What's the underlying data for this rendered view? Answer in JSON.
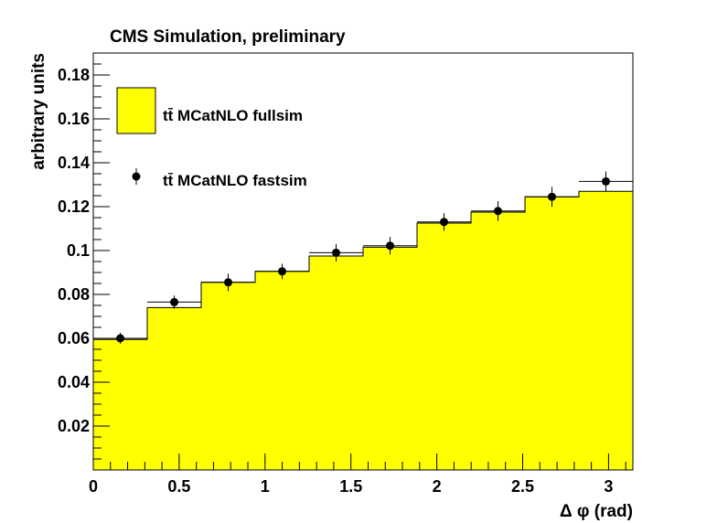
{
  "chart_data": {
    "type": "bar",
    "title": "CMS Simulation, preliminary",
    "xlabel": "Δ φ (rad)",
    "ylabel": "arbitrary units",
    "xlim": [
      0,
      3.1416
    ],
    "ylim": [
      0,
      0.19
    ],
    "x_ticks": [
      "0",
      "0.5",
      "1",
      "1.5",
      "2",
      "2.5",
      "3"
    ],
    "y_ticks": [
      "0.02",
      "0.04",
      "0.06",
      "0.08",
      "0.1",
      "0.12",
      "0.14",
      "0.16",
      "0.18"
    ],
    "bin_edges": [
      0,
      0.3142,
      0.6283,
      0.9425,
      1.2566,
      1.5708,
      1.885,
      2.1991,
      2.5133,
      2.8274,
      3.1416
    ],
    "series": [
      {
        "name": "tt̄ MCatNLO fullsim",
        "style": "filled-histogram",
        "color": "#ffff00",
        "values": [
          0.0595,
          0.074,
          0.0855,
          0.0905,
          0.0975,
          0.1015,
          0.1125,
          0.1175,
          0.1245,
          0.127
        ]
      },
      {
        "name": "tt̄ MCatNLO fastsim",
        "style": "points-with-errors",
        "color": "#000000",
        "values": [
          0.06,
          0.0765,
          0.0855,
          0.0905,
          0.099,
          0.1022,
          0.113,
          0.118,
          0.1245,
          0.1315
        ],
        "errors": [
          0.0025,
          0.003,
          0.004,
          0.0035,
          0.004,
          0.004,
          0.004,
          0.0045,
          0.0045,
          0.0045
        ]
      }
    ],
    "legend_placement": "top-left",
    "grid": false
  }
}
